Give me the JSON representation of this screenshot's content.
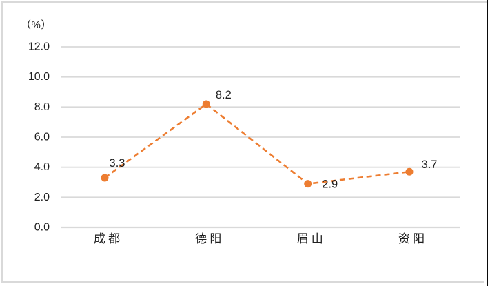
{
  "page": {
    "background": "#FFFFFF",
    "frame_border_color": "#D9D9D9",
    "right_edge_line_color": "#0A0A0A"
  },
  "chart_data": {
    "type": "line",
    "title": "",
    "unit_label": "（%）",
    "categories": [
      "成 都",
      "德 阳",
      "眉 山",
      "资 阳"
    ],
    "values": [
      3.3,
      8.2,
      2.9,
      3.7
    ],
    "data_labels": [
      "3.3",
      "8.2",
      "2.9",
      "3.7"
    ],
    "series_name": "",
    "ylim": [
      0,
      12
    ],
    "yticks": [
      0.0,
      2.0,
      4.0,
      6.0,
      8.0,
      10.0,
      12.0
    ],
    "ytick_labels": [
      "0.0",
      "2.0",
      "4.0",
      "6.0",
      "8.0",
      "10.0",
      "12.0"
    ],
    "grid": true,
    "legend_position": "none",
    "line_style": "dashed",
    "line_color": "#ED7D31",
    "marker_color": "#ED7D31",
    "gridline_color": "#D9D9D9",
    "text_color": "#1F1F1F"
  }
}
